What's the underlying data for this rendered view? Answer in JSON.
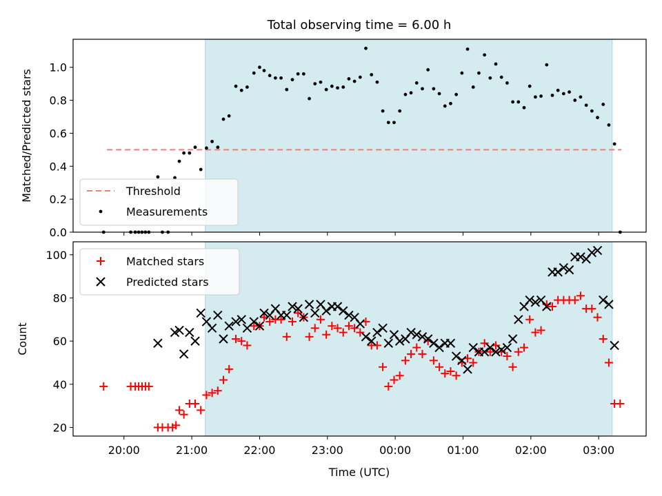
{
  "chart_data": {
    "title": "Total observing time = 6.00 h",
    "colors": {
      "shade": "#d4ebf0",
      "shade_edge": "#a9d5e0",
      "threshold": "#f07c7c",
      "measurements": "#000000",
      "matched": "#ff0000",
      "predicted": "#000000"
    },
    "shade_span": [
      "21:12",
      "03:12"
    ],
    "x_axis": {
      "label": "Time (UTC)",
      "range": [
        "19:15",
        "03:42"
      ],
      "ticks": [
        "20:00",
        "21:00",
        "22:00",
        "23:00",
        "00:00",
        "01:00",
        "02:00",
        "03:00"
      ]
    },
    "panels": [
      {
        "type": "scatter",
        "ylabel": "Matched/Predicted stars",
        "ylim": [
          0,
          1.17
        ],
        "yticks": [
          "0.0",
          "0.2",
          "0.4",
          "0.6",
          "0.8",
          "1.0"
        ],
        "threshold": {
          "value": 0.5,
          "x_range": [
            "19:45",
            "03:20"
          ]
        },
        "legend": {
          "position": "lower-left",
          "threshold_label": "Threshold",
          "measurements_label": "Measurements"
        },
        "measurements": [
          [
            "19:42",
            0.0
          ],
          [
            "20:06",
            0.0
          ],
          [
            "20:10",
            0.0
          ],
          [
            "20:13",
            0.0
          ],
          [
            "20:16",
            0.0
          ],
          [
            "20:19",
            0.0
          ],
          [
            "20:22",
            0.0
          ],
          [
            "20:30",
            0.335
          ],
          [
            "20:34",
            0.0
          ],
          [
            "20:39",
            0.0
          ],
          [
            "20:45",
            0.33
          ],
          [
            "20:49",
            0.43
          ],
          [
            "20:53",
            0.48
          ],
          [
            "20:58",
            0.48
          ],
          [
            "21:03",
            0.515
          ],
          [
            "21:08",
            0.38
          ],
          [
            "21:13",
            0.51
          ],
          [
            "21:18",
            0.55
          ],
          [
            "21:23",
            0.515
          ],
          [
            "21:28",
            0.685
          ],
          [
            "21:33",
            0.705
          ],
          [
            "21:39",
            0.885
          ],
          [
            "21:44",
            0.86
          ],
          [
            "21:49",
            0.88
          ],
          [
            "21:55",
            0.965
          ],
          [
            "22:00",
            1.0
          ],
          [
            "22:04",
            0.98
          ],
          [
            "22:09",
            0.95
          ],
          [
            "22:14",
            0.935
          ],
          [
            "22:19",
            0.935
          ],
          [
            "22:24",
            0.865
          ],
          [
            "22:29",
            0.925
          ],
          [
            "22:34",
            0.96
          ],
          [
            "22:39",
            0.96
          ],
          [
            "22:44",
            0.81
          ],
          [
            "22:49",
            0.9
          ],
          [
            "22:54",
            0.91
          ],
          [
            "22:59",
            0.865
          ],
          [
            "23:04",
            0.885
          ],
          [
            "23:09",
            0.875
          ],
          [
            "23:14",
            0.88
          ],
          [
            "23:19",
            0.93
          ],
          [
            "23:24",
            0.915
          ],
          [
            "23:29",
            0.94
          ],
          [
            "23:34",
            1.115
          ],
          [
            "23:39",
            0.955
          ],
          [
            "23:44",
            0.91
          ],
          [
            "23:49",
            0.735
          ],
          [
            "23:54",
            0.665
          ],
          [
            "23:59",
            0.665
          ],
          [
            "00:04",
            0.735
          ],
          [
            "00:09",
            0.835
          ],
          [
            "00:14",
            0.845
          ],
          [
            "00:19",
            0.905
          ],
          [
            "00:24",
            0.87
          ],
          [
            "00:29",
            0.985
          ],
          [
            "00:34",
            0.87
          ],
          [
            "00:39",
            0.84
          ],
          [
            "00:44",
            0.765
          ],
          [
            "00:49",
            0.78
          ],
          [
            "00:54",
            0.835
          ],
          [
            "00:59",
            0.965
          ],
          [
            "01:04",
            1.11
          ],
          [
            "01:09",
            0.88
          ],
          [
            "01:14",
            0.965
          ],
          [
            "01:19",
            1.075
          ],
          [
            "01:24",
            0.935
          ],
          [
            "01:29",
            1.02
          ],
          [
            "01:34",
            0.94
          ],
          [
            "01:39",
            0.905
          ],
          [
            "01:44",
            0.79
          ],
          [
            "01:49",
            0.79
          ],
          [
            "01:54",
            0.755
          ],
          [
            "01:59",
            0.885
          ],
          [
            "02:04",
            0.82
          ],
          [
            "02:09",
            0.825
          ],
          [
            "02:14",
            1.015
          ],
          [
            "02:19",
            0.83
          ],
          [
            "02:24",
            0.86
          ],
          [
            "02:29",
            0.84
          ],
          [
            "02:34",
            0.85
          ],
          [
            "02:39",
            0.8
          ],
          [
            "02:44",
            0.82
          ],
          [
            "02:49",
            0.77
          ],
          [
            "02:54",
            0.735
          ],
          [
            "02:59",
            0.695
          ],
          [
            "03:04",
            0.775
          ],
          [
            "03:09",
            0.65
          ],
          [
            "03:14",
            0.535
          ],
          [
            "03:19",
            0.0
          ]
        ]
      },
      {
        "type": "scatter",
        "ylabel": "Count",
        "ylim": [
          16,
          106
        ],
        "yticks": [
          "20",
          "40",
          "60",
          "80",
          "100"
        ],
        "legend": {
          "position": "upper-left",
          "matched_label": "Matched stars",
          "predicted_label": "Predicted stars"
        },
        "matched": [
          [
            "19:42",
            39
          ],
          [
            "20:06",
            39
          ],
          [
            "20:10",
            39
          ],
          [
            "20:13",
            39
          ],
          [
            "20:16",
            39
          ],
          [
            "20:19",
            39
          ],
          [
            "20:22",
            39
          ],
          [
            "20:30",
            20
          ],
          [
            "20:34",
            20
          ],
          [
            "20:39",
            20
          ],
          [
            "20:43",
            20
          ],
          [
            "20:46",
            21
          ],
          [
            "20:49",
            28
          ],
          [
            "20:53",
            26
          ],
          [
            "20:58",
            31
          ],
          [
            "21:03",
            31
          ],
          [
            "21:08",
            28
          ],
          [
            "21:13",
            35
          ],
          [
            "21:18",
            36
          ],
          [
            "21:23",
            37
          ],
          [
            "21:28",
            42
          ],
          [
            "21:33",
            47
          ],
          [
            "21:39",
            61
          ],
          [
            "21:44",
            60
          ],
          [
            "21:49",
            58
          ],
          [
            "21:55",
            67
          ],
          [
            "22:00",
            67
          ],
          [
            "22:04",
            71
          ],
          [
            "22:09",
            69
          ],
          [
            "22:14",
            70
          ],
          [
            "22:19",
            70
          ],
          [
            "22:24",
            62
          ],
          [
            "22:29",
            69
          ],
          [
            "22:34",
            73
          ],
          [
            "22:39",
            71
          ],
          [
            "22:44",
            62
          ],
          [
            "22:49",
            66
          ],
          [
            "22:54",
            70
          ],
          [
            "22:59",
            63
          ],
          [
            "23:04",
            67
          ],
          [
            "23:09",
            66
          ],
          [
            "23:14",
            64
          ],
          [
            "23:19",
            67
          ],
          [
            "23:24",
            66
          ],
          [
            "23:29",
            64
          ],
          [
            "23:34",
            69
          ],
          [
            "23:39",
            58
          ],
          [
            "23:44",
            58
          ],
          [
            "23:49",
            48
          ],
          [
            "23:54",
            39
          ],
          [
            "23:59",
            42
          ],
          [
            "00:04",
            44
          ],
          [
            "00:09",
            51
          ],
          [
            "00:14",
            54
          ],
          [
            "00:19",
            57
          ],
          [
            "00:24",
            54
          ],
          [
            "00:29",
            60
          ],
          [
            "00:34",
            51
          ],
          [
            "00:39",
            48
          ],
          [
            "00:44",
            45
          ],
          [
            "00:49",
            46
          ],
          [
            "00:54",
            44
          ],
          [
            "00:59",
            50
          ],
          [
            "01:04",
            52
          ],
          [
            "01:09",
            50
          ],
          [
            "01:14",
            55
          ],
          [
            "01:19",
            59
          ],
          [
            "01:24",
            55
          ],
          [
            "01:29",
            58
          ],
          [
            "01:34",
            55
          ],
          [
            "01:39",
            53
          ],
          [
            "01:44",
            48
          ],
          [
            "01:49",
            55
          ],
          [
            "01:54",
            57
          ],
          [
            "01:59",
            70
          ],
          [
            "02:04",
            64
          ],
          [
            "02:09",
            65
          ],
          [
            "02:14",
            77
          ],
          [
            "02:19",
            76
          ],
          [
            "02:24",
            79
          ],
          [
            "02:29",
            79
          ],
          [
            "02:34",
            79
          ],
          [
            "02:39",
            79
          ],
          [
            "02:44",
            81
          ],
          [
            "02:49",
            75
          ],
          [
            "02:54",
            75
          ],
          [
            "02:59",
            71
          ],
          [
            "03:04",
            61
          ],
          [
            "03:09",
            50
          ],
          [
            "03:14",
            31
          ],
          [
            "03:19",
            31
          ]
        ],
        "predicted": [
          [
            "20:30",
            59
          ],
          [
            "20:45",
            64
          ],
          [
            "20:49",
            65
          ],
          [
            "20:53",
            54
          ],
          [
            "20:58",
            64
          ],
          [
            "21:03",
            60
          ],
          [
            "21:08",
            73
          ],
          [
            "21:13",
            69
          ],
          [
            "21:18",
            66
          ],
          [
            "21:23",
            72
          ],
          [
            "21:28",
            61
          ],
          [
            "21:33",
            67
          ],
          [
            "21:39",
            69
          ],
          [
            "21:44",
            70
          ],
          [
            "21:49",
            66
          ],
          [
            "21:55",
            69
          ],
          [
            "22:00",
            67
          ],
          [
            "22:04",
            73
          ],
          [
            "22:09",
            72
          ],
          [
            "22:14",
            75
          ],
          [
            "22:19",
            72
          ],
          [
            "22:24",
            72
          ],
          [
            "22:29",
            76
          ],
          [
            "22:34",
            75
          ],
          [
            "22:39",
            71
          ],
          [
            "22:44",
            77
          ],
          [
            "22:49",
            73
          ],
          [
            "22:54",
            77
          ],
          [
            "22:59",
            74
          ],
          [
            "23:04",
            76
          ],
          [
            "23:09",
            76
          ],
          [
            "23:14",
            74
          ],
          [
            "23:19",
            72
          ],
          [
            "23:24",
            71
          ],
          [
            "23:29",
            68
          ],
          [
            "23:34",
            62
          ],
          [
            "23:39",
            60
          ],
          [
            "23:44",
            64
          ],
          [
            "23:49",
            66
          ],
          [
            "23:54",
            59
          ],
          [
            "23:59",
            63
          ],
          [
            "00:04",
            60
          ],
          [
            "00:09",
            61
          ],
          [
            "00:14",
            64
          ],
          [
            "00:19",
            63
          ],
          [
            "00:24",
            62
          ],
          [
            "00:29",
            61
          ],
          [
            "00:34",
            59
          ],
          [
            "00:39",
            57
          ],
          [
            "00:44",
            59
          ],
          [
            "00:49",
            59
          ],
          [
            "00:54",
            53
          ],
          [
            "00:59",
            51
          ],
          [
            "01:04",
            47
          ],
          [
            "01:09",
            57
          ],
          [
            "01:14",
            55
          ],
          [
            "01:19",
            55
          ],
          [
            "01:24",
            57
          ],
          [
            "01:29",
            55
          ],
          [
            "01:34",
            56
          ],
          [
            "01:39",
            57
          ],
          [
            "01:44",
            61
          ],
          [
            "01:49",
            70
          ],
          [
            "01:54",
            76
          ],
          [
            "01:59",
            79
          ],
          [
            "02:04",
            78
          ],
          [
            "02:09",
            79
          ],
          [
            "02:14",
            76
          ],
          [
            "02:19",
            92
          ],
          [
            "02:24",
            92
          ],
          [
            "02:29",
            94
          ],
          [
            "02:34",
            93
          ],
          [
            "02:39",
            99
          ],
          [
            "02:44",
            99
          ],
          [
            "02:49",
            98
          ],
          [
            "02:54",
            101
          ],
          [
            "02:59",
            102
          ],
          [
            "03:04",
            79
          ],
          [
            "03:09",
            77
          ],
          [
            "03:14",
            58
          ]
        ]
      }
    ]
  }
}
